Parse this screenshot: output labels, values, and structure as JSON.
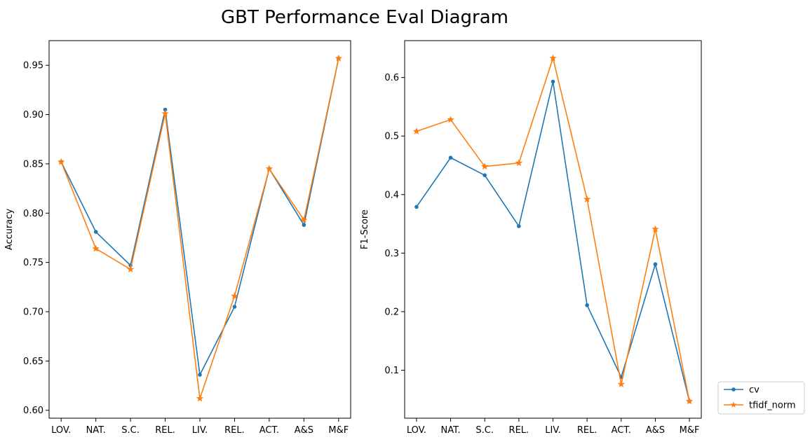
{
  "chart_data": {
    "type": "line",
    "title": "GBT Performance Eval Diagram",
    "categories": [
      "LOV.",
      "NAT.",
      "S.C.",
      "REL.",
      "LIV.",
      "REL.",
      "ACT.",
      "A&S",
      "M&F"
    ],
    "legend": {
      "placement": "outside-bottom-right",
      "entries": [
        {
          "name": "cv",
          "color": "#1f77b4",
          "marker": "point"
        },
        {
          "name": "tfidf_norm",
          "color": "#ff7f0e",
          "marker": "star"
        }
      ]
    },
    "panels": [
      {
        "ylabel": "Accuracy",
        "ylim": [
          0.592,
          0.975
        ],
        "yticks": [
          "0.60",
          "0.65",
          "0.70",
          "0.75",
          "0.80",
          "0.85",
          "0.90",
          "0.95"
        ],
        "series": [
          {
            "name": "cv",
            "color": "#1f77b4",
            "marker": "point",
            "values": [
              0.852,
              0.781,
              0.747,
              0.905,
              0.636,
              0.705,
              0.845,
              0.788,
              0.957
            ]
          },
          {
            "name": "tfidf_norm",
            "color": "#ff7f0e",
            "marker": "star",
            "values": [
              0.852,
              0.764,
              0.743,
              0.901,
              0.612,
              0.716,
              0.845,
              0.793,
              0.957
            ]
          }
        ]
      },
      {
        "ylabel": "F1-Score",
        "ylim": [
          0.018,
          0.663
        ],
        "yticks": [
          "0.1",
          "0.2",
          "0.3",
          "0.4",
          "0.5",
          "0.6"
        ],
        "series": [
          {
            "name": "cv",
            "color": "#1f77b4",
            "marker": "point",
            "values": [
              0.379,
              0.463,
              0.433,
              0.346,
              0.593,
              0.211,
              0.088,
              0.281,
              0.047
            ]
          },
          {
            "name": "tfidf_norm",
            "color": "#ff7f0e",
            "marker": "star",
            "values": [
              0.508,
              0.528,
              0.448,
              0.454,
              0.633,
              0.392,
              0.076,
              0.341,
              0.047
            ]
          }
        ]
      }
    ]
  }
}
